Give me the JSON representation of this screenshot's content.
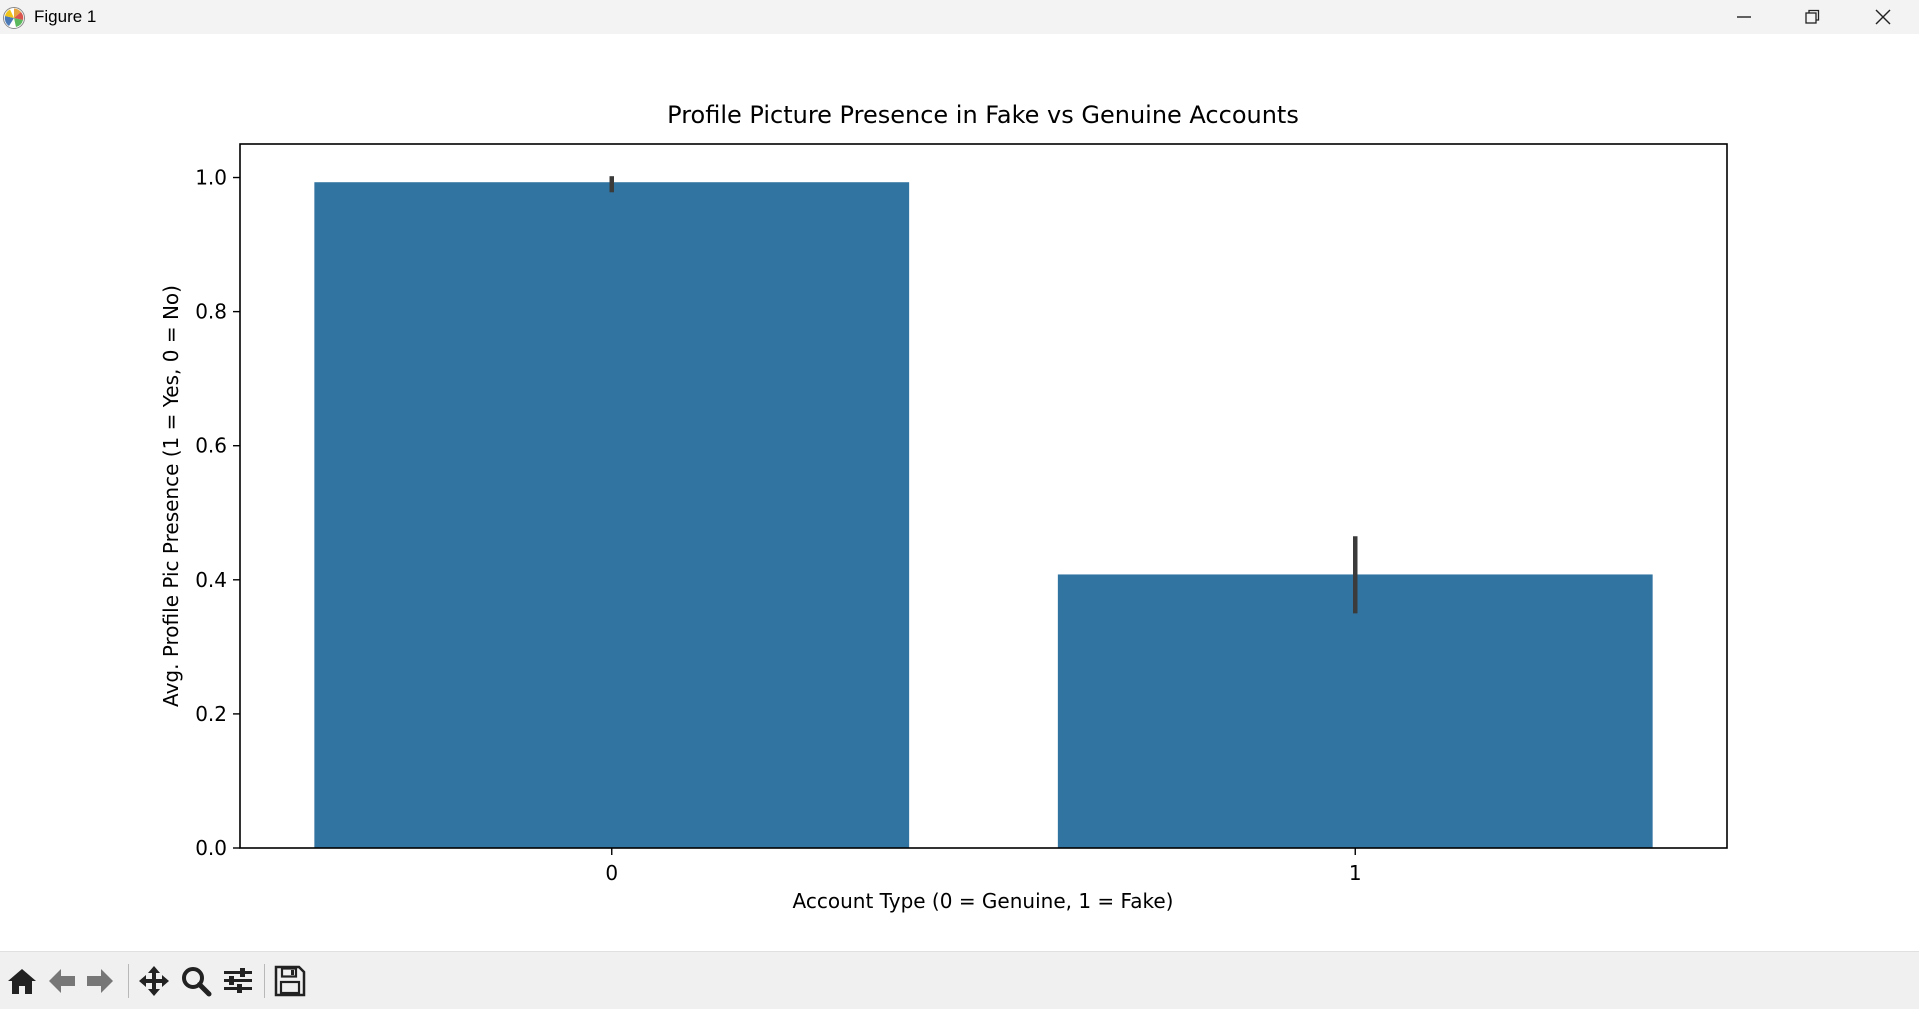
{
  "window": {
    "title": "Figure 1",
    "controls": [
      "minimize-icon",
      "restore-icon",
      "close-icon"
    ]
  },
  "toolbar": {
    "tools": [
      "home-icon",
      "back-arrow-icon",
      "forward-arrow-icon",
      "pan-icon",
      "zoom-icon",
      "configure-subplots-icon",
      "save-icon"
    ]
  },
  "chart_data": {
    "type": "bar",
    "title": "Profile Picture Presence in Fake vs Genuine Accounts",
    "xlabel": "Account Type (0 = Genuine, 1 = Fake)",
    "ylabel": "Avg. Profile Pic Presence (1 = Yes, 0 = No)",
    "categories": [
      "0",
      "1"
    ],
    "values": [
      0.993,
      0.408
    ],
    "error_bars": [
      [
        0.978,
        1.002
      ],
      [
        0.35,
        0.465
      ]
    ],
    "ylim": [
      0,
      1.05
    ],
    "yticks": [
      0.0,
      0.2,
      0.4,
      0.6,
      0.8,
      1.0
    ],
    "ytick_labels": [
      "0.0",
      "0.2",
      "0.4",
      "0.6",
      "0.8",
      "1.0"
    ],
    "bar_color": "#3274a1",
    "error_color": "#3b3b3b",
    "grid": false,
    "legend": "none"
  }
}
